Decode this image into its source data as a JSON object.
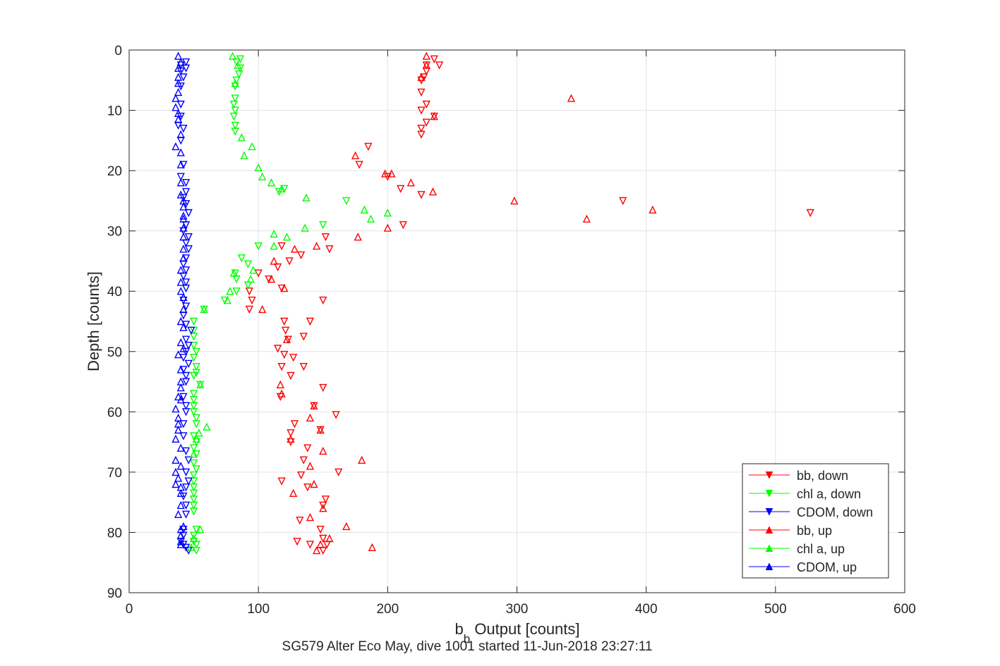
{
  "chart_data": {
    "type": "scatter",
    "title": "SG579 Alter Eco May, dive 1001 started 11-Jun-2018 23:27:11",
    "xlabel_main": "b",
    "xlabel_sub": "b",
    "xlabel_rest": " Output [counts]",
    "ylabel": "Depth [counts]",
    "xlim": [
      0,
      600
    ],
    "ylim": [
      0,
      90
    ],
    "y_reversed": true,
    "grid": true,
    "legend_position": "bottom-right",
    "x_ticks": [
      "0",
      "100",
      "200",
      "300",
      "400",
      "500",
      "600"
    ],
    "y_ticks": [
      "0",
      "10",
      "20",
      "30",
      "40",
      "50",
      "60",
      "70",
      "80",
      "90"
    ],
    "series": [
      {
        "name": "bb, down",
        "color": "#ff0000",
        "marker": "triangle-down",
        "points": [
          [
            236,
            1.5
          ],
          [
            240,
            2.5
          ],
          [
            230,
            2.5
          ],
          [
            230,
            3.5
          ],
          [
            228,
            4.5
          ],
          [
            226,
            5
          ],
          [
            226,
            7
          ],
          [
            230,
            9
          ],
          [
            226,
            10
          ],
          [
            236,
            11
          ],
          [
            230,
            12
          ],
          [
            226,
            13
          ],
          [
            226,
            14
          ],
          [
            185,
            16
          ],
          [
            178,
            19
          ],
          [
            200,
            21
          ],
          [
            210,
            23
          ],
          [
            226,
            24
          ],
          [
            382,
            25
          ],
          [
            527,
            27
          ],
          [
            212,
            29
          ],
          [
            152,
            31
          ],
          [
            118,
            32.5
          ],
          [
            155,
            33
          ],
          [
            133,
            34
          ],
          [
            124,
            35
          ],
          [
            115,
            36
          ],
          [
            100,
            37
          ],
          [
            108,
            38
          ],
          [
            118,
            39.5
          ],
          [
            93,
            40
          ],
          [
            95,
            41.5
          ],
          [
            150,
            41.5
          ],
          [
            93,
            43
          ],
          [
            120,
            45
          ],
          [
            140,
            45
          ],
          [
            121,
            46.5
          ],
          [
            135,
            47.5
          ],
          [
            123,
            48
          ],
          [
            115,
            49.5
          ],
          [
            120,
            50.5
          ],
          [
            127,
            51
          ],
          [
            118,
            52.5
          ],
          [
            135,
            52.5
          ],
          [
            125,
            54
          ],
          [
            150,
            56
          ],
          [
            117,
            57.5
          ],
          [
            143,
            59
          ],
          [
            160,
            60.5
          ],
          [
            128,
            62
          ],
          [
            125,
            63.5
          ],
          [
            148,
            63
          ],
          [
            125,
            65
          ],
          [
            138,
            66
          ],
          [
            135,
            68
          ],
          [
            162,
            70
          ],
          [
            133,
            70.5
          ],
          [
            118,
            71.5
          ],
          [
            138,
            72.5
          ],
          [
            152,
            74.5
          ],
          [
            150,
            75.5
          ],
          [
            132,
            78
          ],
          [
            148,
            79.5
          ],
          [
            130,
            81.5
          ],
          [
            150,
            81
          ],
          [
            153,
            82
          ],
          [
            140,
            82
          ],
          [
            150,
            83
          ]
        ]
      },
      {
        "name": "chl a, down",
        "color": "#00ff00",
        "marker": "triangle-down",
        "points": [
          [
            86,
            1.5
          ],
          [
            83,
            2
          ],
          [
            86,
            3
          ],
          [
            85,
            4
          ],
          [
            83,
            5
          ],
          [
            82,
            6
          ],
          [
            82,
            8
          ],
          [
            81,
            9
          ],
          [
            82,
            10
          ],
          [
            81,
            11
          ],
          [
            82,
            12.5
          ],
          [
            82,
            13.5
          ],
          [
            116,
            23.5
          ],
          [
            120,
            23
          ],
          [
            168,
            25
          ],
          [
            150,
            29
          ],
          [
            100,
            32.5
          ],
          [
            87,
            34.5
          ],
          [
            92,
            35.5
          ],
          [
            82,
            37
          ],
          [
            83,
            38
          ],
          [
            92,
            39
          ],
          [
            83,
            40
          ],
          [
            74,
            41.5
          ],
          [
            58,
            43
          ],
          [
            50,
            45
          ],
          [
            50,
            46.5
          ],
          [
            50,
            47.5
          ],
          [
            50,
            49
          ],
          [
            52,
            50
          ],
          [
            50,
            51
          ],
          [
            52,
            52.5
          ],
          [
            52,
            53.5
          ],
          [
            50,
            54
          ],
          [
            55,
            55.5
          ],
          [
            50,
            57
          ],
          [
            50,
            58
          ],
          [
            50,
            59
          ],
          [
            50,
            60
          ],
          [
            52,
            61
          ],
          [
            52,
            62
          ],
          [
            50,
            64
          ],
          [
            52,
            65
          ],
          [
            50,
            66
          ],
          [
            52,
            67
          ],
          [
            50,
            68.5
          ],
          [
            52,
            69.5
          ],
          [
            50,
            70.5
          ],
          [
            50,
            71.5
          ],
          [
            50,
            72.5
          ],
          [
            50,
            73.5
          ],
          [
            50,
            74.5
          ],
          [
            50,
            75.5
          ],
          [
            50,
            76.5
          ],
          [
            52,
            79.5
          ],
          [
            50,
            80.5
          ],
          [
            50,
            81.5
          ],
          [
            52,
            82
          ],
          [
            52,
            83
          ]
        ]
      },
      {
        "name": "CDOM, down",
        "color": "#0000ff",
        "marker": "triangle-down",
        "points": [
          [
            44,
            2
          ],
          [
            40,
            2.5
          ],
          [
            44,
            3
          ],
          [
            40,
            3.5
          ],
          [
            42,
            4.5
          ],
          [
            40,
            6
          ],
          [
            40,
            9
          ],
          [
            40,
            11
          ],
          [
            38,
            12.5
          ],
          [
            42,
            13
          ],
          [
            40,
            15
          ],
          [
            42,
            19
          ],
          [
            40,
            21
          ],
          [
            44,
            22
          ],
          [
            44,
            23.5
          ],
          [
            42,
            24.5
          ],
          [
            44,
            25.5
          ],
          [
            46,
            27
          ],
          [
            44,
            29
          ],
          [
            42,
            30
          ],
          [
            46,
            31
          ],
          [
            44,
            32
          ],
          [
            46,
            33
          ],
          [
            44,
            34.5
          ],
          [
            42,
            35.5
          ],
          [
            44,
            36.5
          ],
          [
            42,
            37.5
          ],
          [
            44,
            38.5
          ],
          [
            44,
            39.5
          ],
          [
            42,
            41.5
          ],
          [
            44,
            42.5
          ],
          [
            42,
            44
          ],
          [
            44,
            45.5
          ],
          [
            48,
            46.5
          ],
          [
            44,
            48
          ],
          [
            46,
            49
          ],
          [
            44,
            50
          ],
          [
            42,
            51
          ],
          [
            46,
            52
          ],
          [
            42,
            53
          ],
          [
            44,
            54
          ],
          [
            44,
            55
          ],
          [
            42,
            57.5
          ],
          [
            44,
            59
          ],
          [
            44,
            60
          ],
          [
            42,
            62
          ],
          [
            42,
            64
          ],
          [
            44,
            66.5
          ],
          [
            46,
            68
          ],
          [
            44,
            70
          ],
          [
            46,
            71.5
          ],
          [
            44,
            72.5
          ],
          [
            42,
            74
          ],
          [
            44,
            75.5
          ],
          [
            44,
            77
          ],
          [
            42,
            79.5
          ],
          [
            42,
            80.5
          ],
          [
            40,
            81.5
          ],
          [
            42,
            82
          ],
          [
            44,
            82.5
          ],
          [
            46,
            83
          ]
        ]
      },
      {
        "name": "bb, up",
        "color": "#ff0000",
        "marker": "triangle-up",
        "points": [
          [
            230,
            1
          ],
          [
            230,
            2.5
          ],
          [
            226,
            4.5
          ],
          [
            342,
            8
          ],
          [
            236,
            11
          ],
          [
            175,
            17.5
          ],
          [
            198,
            20.5
          ],
          [
            203,
            20.5
          ],
          [
            218,
            22
          ],
          [
            235,
            23.5
          ],
          [
            298,
            25
          ],
          [
            405,
            26.5
          ],
          [
            200,
            29.5
          ],
          [
            354,
            28
          ],
          [
            177,
            31
          ],
          [
            145,
            32.5
          ],
          [
            128,
            33
          ],
          [
            112,
            35
          ],
          [
            120,
            39.5
          ],
          [
            110,
            38
          ],
          [
            103,
            43
          ],
          [
            122,
            48
          ],
          [
            117,
            55.5
          ],
          [
            118,
            57
          ],
          [
            143,
            59
          ],
          [
            140,
            61
          ],
          [
            125,
            64.5
          ],
          [
            148,
            63
          ],
          [
            150,
            66.5
          ],
          [
            180,
            68
          ],
          [
            140,
            69
          ],
          [
            143,
            72
          ],
          [
            127,
            73.5
          ],
          [
            150,
            76
          ],
          [
            140,
            77.5
          ],
          [
            168,
            79
          ],
          [
            155,
            81
          ],
          [
            148,
            82
          ],
          [
            145,
            83
          ],
          [
            188,
            82.5
          ]
        ]
      },
      {
        "name": "chl a, up",
        "color": "#00ff00",
        "marker": "triangle-up",
        "points": [
          [
            80,
            1
          ],
          [
            84,
            2.5
          ],
          [
            82,
            5.5
          ],
          [
            87,
            14.5
          ],
          [
            95,
            16
          ],
          [
            89,
            17.5
          ],
          [
            100,
            19.5
          ],
          [
            103,
            21
          ],
          [
            110,
            22
          ],
          [
            118,
            23
          ],
          [
            137,
            24.5
          ],
          [
            182,
            26.5
          ],
          [
            200,
            27
          ],
          [
            187,
            28
          ],
          [
            136,
            29.5
          ],
          [
            112,
            30.5
          ],
          [
            122,
            31
          ],
          [
            112,
            32.5
          ],
          [
            96,
            36.5
          ],
          [
            94,
            38
          ],
          [
            81,
            37
          ],
          [
            78,
            40
          ],
          [
            76,
            41.5
          ],
          [
            58,
            43
          ],
          [
            55,
            55.5
          ],
          [
            60,
            62.5
          ],
          [
            54,
            63.5
          ],
          [
            52,
            64.5
          ],
          [
            50,
            67
          ],
          [
            55,
            79.5
          ],
          [
            50,
            81
          ],
          [
            48,
            82.5
          ]
        ]
      },
      {
        "name": "CDOM, up",
        "color": "#0000ff",
        "marker": "triangle-up",
        "points": [
          [
            38,
            1
          ],
          [
            40,
            2
          ],
          [
            38,
            3
          ],
          [
            38,
            4.5
          ],
          [
            38,
            5.5
          ],
          [
            38,
            7
          ],
          [
            36,
            8
          ],
          [
            36,
            9.5
          ],
          [
            38,
            10.5
          ],
          [
            38,
            11.5
          ],
          [
            40,
            14
          ],
          [
            36,
            16
          ],
          [
            40,
            17
          ],
          [
            40,
            19
          ],
          [
            40,
            22
          ],
          [
            40,
            24
          ],
          [
            42,
            25
          ],
          [
            42,
            26
          ],
          [
            42,
            27.5
          ],
          [
            42,
            28
          ],
          [
            42,
            29.5
          ],
          [
            42,
            31
          ],
          [
            42,
            33
          ],
          [
            42,
            34.5
          ],
          [
            40,
            36.5
          ],
          [
            40,
            38.5
          ],
          [
            40,
            40
          ],
          [
            42,
            41
          ],
          [
            42,
            43
          ],
          [
            40,
            45
          ],
          [
            42,
            46
          ],
          [
            40,
            48.5
          ],
          [
            42,
            49.5
          ],
          [
            38,
            50.5
          ],
          [
            40,
            53
          ],
          [
            40,
            55
          ],
          [
            40,
            56
          ],
          [
            38,
            57.5
          ],
          [
            40,
            58
          ],
          [
            36,
            59.5
          ],
          [
            38,
            61
          ],
          [
            38,
            62
          ],
          [
            38,
            63
          ],
          [
            36,
            64.5
          ],
          [
            40,
            66
          ],
          [
            36,
            68
          ],
          [
            40,
            69
          ],
          [
            36,
            70
          ],
          [
            38,
            71
          ],
          [
            36,
            72
          ],
          [
            40,
            72.5
          ],
          [
            40,
            73.5
          ],
          [
            40,
            75.5
          ],
          [
            38,
            77
          ],
          [
            42,
            79
          ],
          [
            40,
            79.5
          ],
          [
            40,
            80.5
          ],
          [
            40,
            81.5
          ],
          [
            40,
            82
          ]
        ]
      }
    ]
  }
}
